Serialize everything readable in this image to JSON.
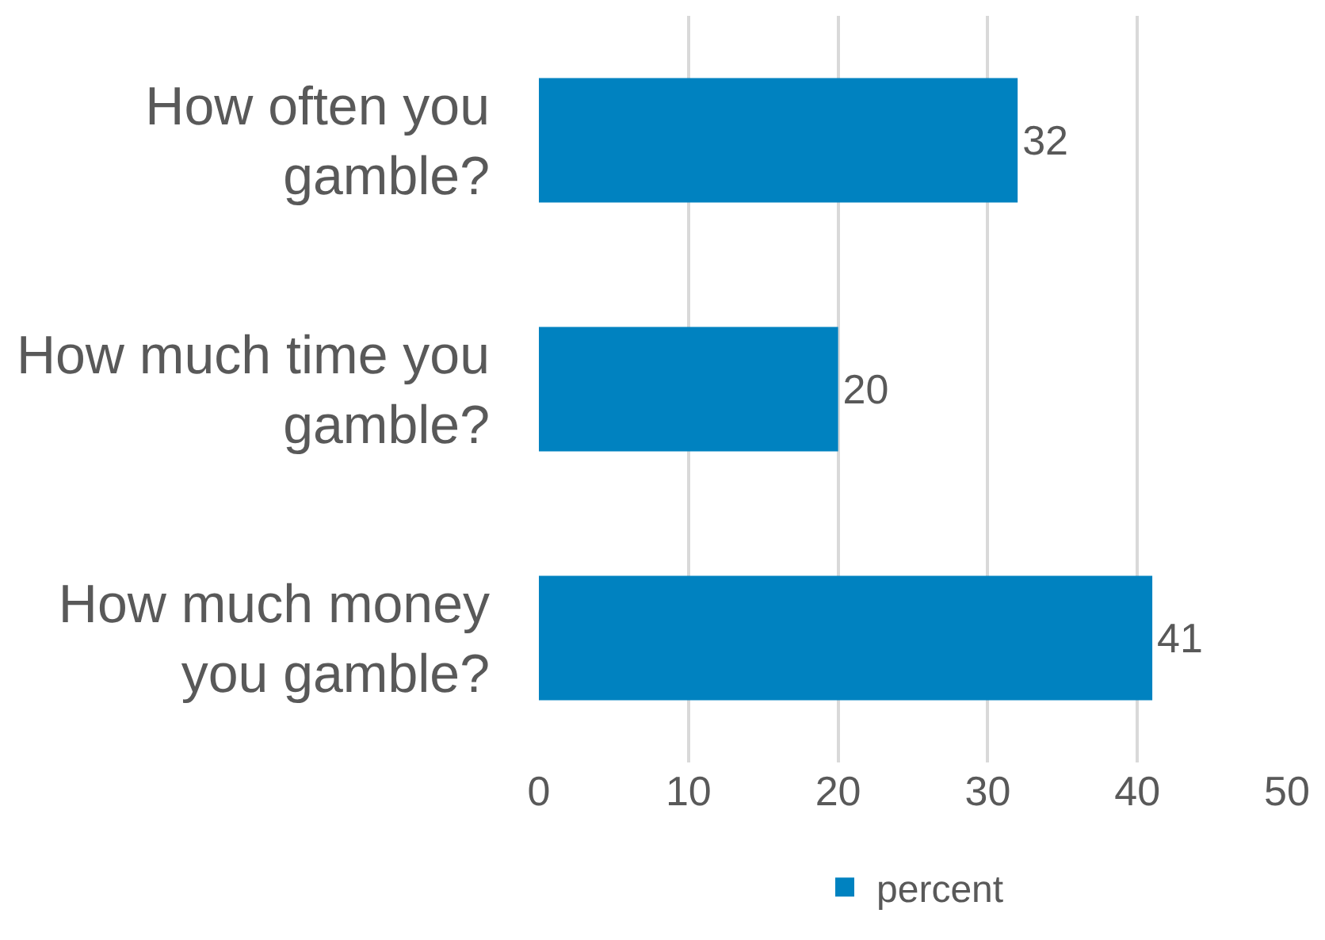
{
  "chart_data": {
    "type": "bar",
    "orientation": "horizontal",
    "categories": [
      "How often you gamble?",
      "How much time you gamble?",
      "How much money you gamble?"
    ],
    "series": [
      {
        "name": "percent",
        "color": "#0082c0",
        "values": [
          32,
          20,
          41
        ]
      }
    ],
    "xlim": [
      0,
      50
    ],
    "xticks": [
      0,
      10,
      20,
      30,
      40,
      50
    ],
    "grid": "x",
    "legend": "bottom",
    "data_labels": true
  }
}
